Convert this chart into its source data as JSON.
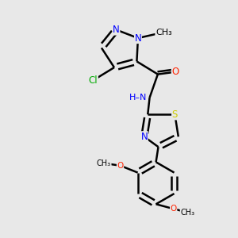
{
  "background_color": "#e8e8e8",
  "bond_color": "#000000",
  "bond_width": 1.8,
  "atom_colors": {
    "N": "#0000ff",
    "O": "#ff2200",
    "S": "#cccc00",
    "Cl": "#00aa00",
    "C": "#000000",
    "H": "#555555"
  },
  "font_size": 8.5,
  "fig_size": [
    3.0,
    3.0
  ],
  "dpi": 100,
  "xlim": [
    0.0,
    10.0
  ],
  "ylim": [
    0.0,
    10.0
  ]
}
